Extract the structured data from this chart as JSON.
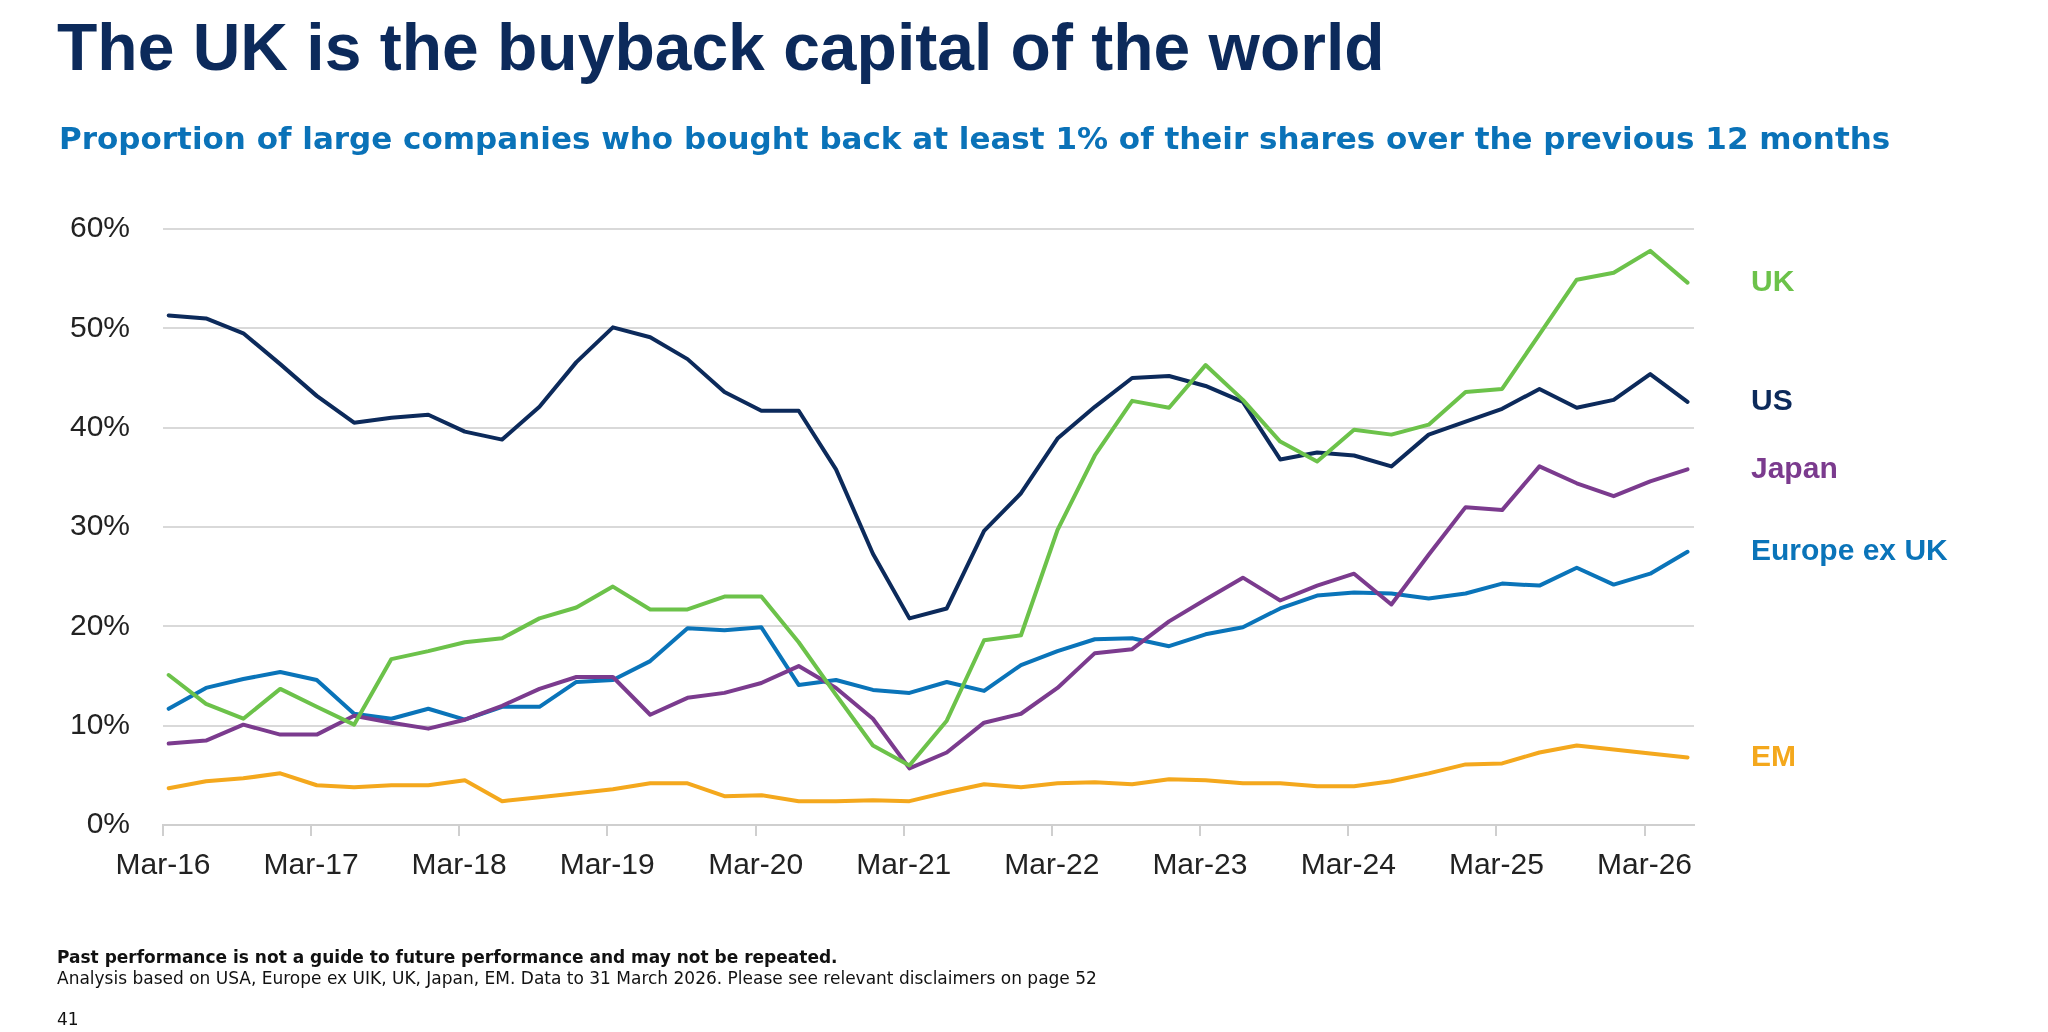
{
  "chart_data": {
    "type": "line",
    "title": "The UK is the buyback capital of the world",
    "subtitle": "Proportion of large companies who bought back at least 1% of their shares over the previous 12 months",
    "x": [
      "2016-03-15",
      "2016-06-15",
      "2016-09-15",
      "2016-12-15",
      "2017-03-15",
      "2017-06-15",
      "2017-09-15",
      "2017-12-15",
      "2018-03-15",
      "2018-06-15",
      "2018-09-15",
      "2018-12-15",
      "2019-03-15",
      "2019-06-15",
      "2019-09-15",
      "2019-12-15",
      "2020-03-15",
      "2020-06-15",
      "2020-09-15",
      "2020-12-15",
      "2021-03-15",
      "2021-06-15",
      "2021-09-15",
      "2021-12-15",
      "2022-03-15",
      "2022-06-15",
      "2022-09-15",
      "2022-12-15",
      "2023-03-15",
      "2023-06-15",
      "2023-09-15",
      "2023-12-15",
      "2024-03-15",
      "2024-06-15",
      "2024-09-15",
      "2024-12-15",
      "2025-03-15",
      "2025-06-15",
      "2025-09-15",
      "2025-12-15",
      "2026-03-15",
      "2026-06-15"
    ],
    "xlim": [
      "2016-03-01",
      "2026-07-01"
    ],
    "xticks": [
      {
        "value": "2016-03-01",
        "label": "Mar-16"
      },
      {
        "value": "2017-03-01",
        "label": "Mar-17"
      },
      {
        "value": "2018-03-01",
        "label": "Mar-18"
      },
      {
        "value": "2019-03-01",
        "label": "Mar-19"
      },
      {
        "value": "2020-03-01",
        "label": "Mar-20"
      },
      {
        "value": "2021-03-01",
        "label": "Mar-21"
      },
      {
        "value": "2022-03-01",
        "label": "Mar-22"
      },
      {
        "value": "2023-03-01",
        "label": "Mar-23"
      },
      {
        "value": "2024-03-01",
        "label": "Mar-24"
      },
      {
        "value": "2025-03-01",
        "label": "Mar-25"
      },
      {
        "value": "2026-03-01",
        "label": "Mar-26"
      }
    ],
    "ylim": [
      0,
      60
    ],
    "yticks": [
      {
        "value": 0,
        "label": "0%"
      },
      {
        "value": 10,
        "label": "10%"
      },
      {
        "value": 20,
        "label": "20%"
      },
      {
        "value": 30,
        "label": "30%"
      },
      {
        "value": 40,
        "label": "40%"
      },
      {
        "value": 50,
        "label": "50%"
      },
      {
        "value": 60,
        "label": "60%"
      }
    ],
    "series": [
      {
        "name": "UK",
        "color": "#6cc24a",
        "values": [
          15.1,
          12.2,
          10.7,
          13.7,
          11.9,
          10.1,
          16.7,
          17.5,
          18.4,
          18.8,
          20.8,
          21.9,
          24.0,
          21.7,
          21.7,
          23.0,
          23.0,
          18.4,
          13.1,
          8.0,
          6.0,
          10.5,
          18.6,
          19.1,
          29.7,
          37.2,
          42.7,
          42.0,
          46.3,
          42.8,
          38.6,
          36.6,
          39.8,
          39.3,
          40.3,
          43.6,
          43.9,
          49.4,
          54.9,
          55.6,
          57.8,
          54.6
        ]
      },
      {
        "name": "US",
        "color": "#0c2a5b",
        "values": [
          51.3,
          51.0,
          49.5,
          46.4,
          43.2,
          40.5,
          41.0,
          41.3,
          39.6,
          38.8,
          42.1,
          46.6,
          50.1,
          49.1,
          46.9,
          43.6,
          41.7,
          41.7,
          35.8,
          27.3,
          20.8,
          21.8,
          29.6,
          33.4,
          38.9,
          42.1,
          45.0,
          45.2,
          44.2,
          42.6,
          36.8,
          37.5,
          37.2,
          36.1,
          39.3,
          40.6,
          41.9,
          43.9,
          42.0,
          42.8,
          45.4,
          42.6
        ]
      },
      {
        "name": "Japan",
        "color": "#7b3b8e",
        "values": [
          8.2,
          8.5,
          10.1,
          9.1,
          9.1,
          11.0,
          10.3,
          9.7,
          10.6,
          12.0,
          13.7,
          14.9,
          14.9,
          11.1,
          12.8,
          13.3,
          14.3,
          16.0,
          13.8,
          10.7,
          5.7,
          7.3,
          10.3,
          11.2,
          13.8,
          17.3,
          17.7,
          20.5,
          22.7,
          24.9,
          22.6,
          24.1,
          25.3,
          22.2,
          27.2,
          32.0,
          31.7,
          36.1,
          34.4,
          33.1,
          34.6,
          35.8
        ]
      },
      {
        "name": "Europe ex UK",
        "color": "#0a74b9",
        "values": [
          11.7,
          13.8,
          14.7,
          15.4,
          14.6,
          11.2,
          10.7,
          11.7,
          10.6,
          11.9,
          11.9,
          14.4,
          14.6,
          16.5,
          19.8,
          19.6,
          19.9,
          14.1,
          14.6,
          13.6,
          13.3,
          14.4,
          13.5,
          16.1,
          17.5,
          18.7,
          18.8,
          18.0,
          19.2,
          19.9,
          21.8,
          23.1,
          23.4,
          23.3,
          22.8,
          23.3,
          24.3,
          24.1,
          25.9,
          24.2,
          25.3,
          27.5
        ]
      },
      {
        "name": "EM",
        "color": "#f4a81d",
        "values": [
          3.7,
          4.4,
          4.7,
          5.2,
          4.0,
          3.8,
          4.0,
          4.0,
          4.5,
          2.4,
          2.8,
          3.2,
          3.6,
          4.2,
          4.2,
          2.9,
          3.0,
          2.4,
          2.4,
          2.5,
          2.4,
          3.3,
          4.1,
          3.8,
          4.2,
          4.3,
          4.1,
          4.6,
          4.5,
          4.2,
          4.2,
          3.9,
          3.9,
          4.4,
          5.2,
          6.1,
          6.2,
          7.3,
          8.0,
          7.6,
          7.2,
          6.8
        ]
      }
    ],
    "grid": "y",
    "legend": false,
    "marker": "none",
    "line_style": "solid",
    "annotations": [
      "Past performance is not a guide to future performance and may not be repeated.",
      "Analysis based on USA, Europe ex UIK, UK, Japan, EM. Data to 31 March 2026. Please see relevant disclaimers on page 52",
      "41"
    ]
  }
}
